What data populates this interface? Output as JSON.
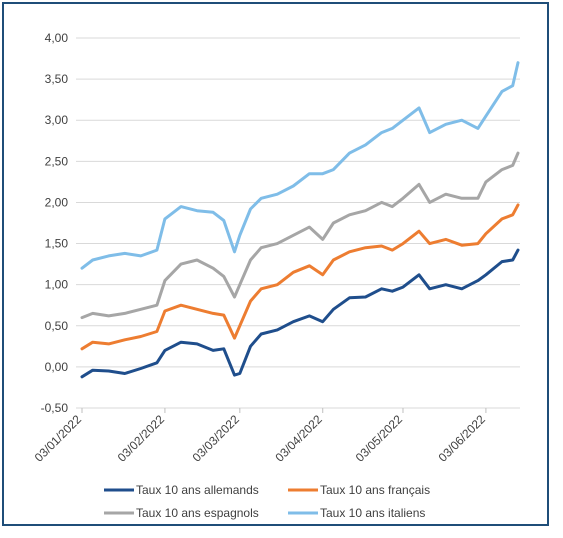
{
  "chart_data": {
    "type": "line",
    "title": "",
    "xlabel": "",
    "ylabel": "",
    "ylim": [
      -0.5,
      4.0
    ],
    "y_ticks": [
      "4,00",
      "3,50",
      "3,00",
      "2,50",
      "2,00",
      "1,50",
      "1,00",
      "0,50",
      "0,00",
      "-0,50"
    ],
    "x_ticks": [
      "03/01/2022",
      "03/02/2022",
      "03/03/2022",
      "03/04/2022",
      "03/05/2022",
      "03/06/2022"
    ],
    "grid": "horizontal",
    "legend_position": "bottom",
    "x": [
      "03/01/2022",
      "07/01/2022",
      "13/01/2022",
      "19/01/2022",
      "25/01/2022",
      "31/01/2022",
      "03/02/2022",
      "09/02/2022",
      "15/02/2022",
      "21/02/2022",
      "25/02/2022",
      "01/03/2022",
      "03/03/2022",
      "07/03/2022",
      "11/03/2022",
      "17/03/2022",
      "23/03/2022",
      "29/03/2022",
      "03/04/2022",
      "07/04/2022",
      "13/04/2022",
      "19/04/2022",
      "25/04/2022",
      "29/04/2022",
      "03/05/2022",
      "09/05/2022",
      "13/05/2022",
      "19/05/2022",
      "25/05/2022",
      "31/05/2022",
      "03/06/2022",
      "09/06/2022",
      "13/06/2022",
      "15/06/2022"
    ],
    "series": [
      {
        "name": "Taux 10 ans allemands",
        "color": "#1f4e8c",
        "values": [
          -0.12,
          -0.04,
          -0.05,
          -0.08,
          -0.02,
          0.05,
          0.2,
          0.3,
          0.28,
          0.2,
          0.22,
          -0.1,
          -0.08,
          0.25,
          0.4,
          0.45,
          0.55,
          0.62,
          0.55,
          0.7,
          0.84,
          0.85,
          0.95,
          0.92,
          0.97,
          1.12,
          0.95,
          1.0,
          0.95,
          1.05,
          1.12,
          1.28,
          1.3,
          1.42
        ]
      },
      {
        "name": "Taux 10 ans français",
        "color": "#ed7d31",
        "values": [
          0.22,
          0.3,
          0.28,
          0.33,
          0.37,
          0.43,
          0.68,
          0.75,
          0.7,
          0.65,
          0.63,
          0.35,
          0.5,
          0.8,
          0.95,
          1.0,
          1.15,
          1.23,
          1.12,
          1.3,
          1.4,
          1.45,
          1.47,
          1.42,
          1.5,
          1.65,
          1.5,
          1.55,
          1.48,
          1.5,
          1.62,
          1.8,
          1.85,
          1.97
        ]
      },
      {
        "name": "Taux 10 ans espagnols",
        "color": "#a6a6a6",
        "values": [
          0.6,
          0.65,
          0.62,
          0.65,
          0.7,
          0.75,
          1.05,
          1.25,
          1.3,
          1.2,
          1.1,
          0.85,
          1.0,
          1.3,
          1.45,
          1.5,
          1.6,
          1.7,
          1.55,
          1.75,
          1.85,
          1.9,
          2.0,
          1.95,
          2.05,
          2.22,
          2.0,
          2.1,
          2.05,
          2.05,
          2.25,
          2.4,
          2.45,
          2.6
        ]
      },
      {
        "name": "Taux 10 ans italiens",
        "color": "#7fbde8",
        "values": [
          1.2,
          1.3,
          1.35,
          1.38,
          1.35,
          1.42,
          1.8,
          1.95,
          1.9,
          1.88,
          1.78,
          1.4,
          1.6,
          1.92,
          2.05,
          2.1,
          2.2,
          2.35,
          2.35,
          2.4,
          2.6,
          2.7,
          2.85,
          2.9,
          3.0,
          3.15,
          2.85,
          2.95,
          3.0,
          2.9,
          3.05,
          3.35,
          3.42,
          3.7
        ]
      }
    ]
  }
}
